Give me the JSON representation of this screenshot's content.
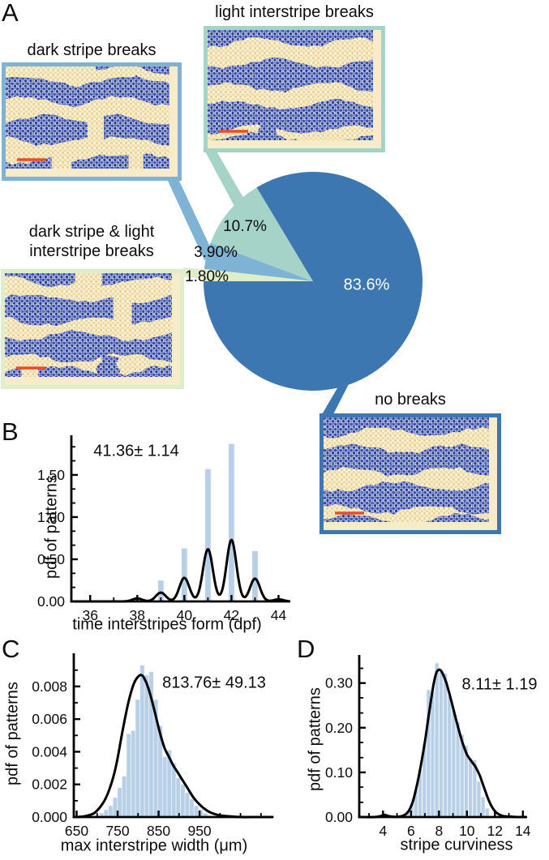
{
  "figure": {
    "panels": {
      "A": {
        "letter": "A",
        "boxes": [
          {
            "id": "dark-stripe-breaks",
            "label": "dark stripe breaks"
          },
          {
            "id": "light-interstripe-breaks",
            "label": "light interstripe breaks"
          },
          {
            "id": "dark-stripe-and-light-interstripe-breaks",
            "label_line1": "dark stripe & light",
            "label_line2": "interstripe breaks"
          },
          {
            "id": "no-breaks",
            "label": "no breaks"
          }
        ]
      },
      "B": {
        "letter": "B",
        "annotation": "41.36± 1.14",
        "xlabel": "time interstripes form (dpf)",
        "ylabel": "pdf of patterns"
      },
      "C": {
        "letter": "C",
        "annotation": "813.76± 49.13",
        "xlabel": "max interstripe width (μm)",
        "ylabel": "pdf of patterns"
      },
      "D": {
        "letter": "D",
        "annotation": "8.11± 1.19",
        "xlabel": "stripe curviness",
        "ylabel": "pdf of patterns"
      }
    },
    "colors": {
      "pie_blue": "#3d77b2",
      "pie_teal": "#a6d3c8",
      "pie_light_blue": "#7fb3d5",
      "pie_pale_green": "#dfeeca",
      "histogram_bar": "#b7cfe7",
      "curve": "#000000",
      "axis": "#000000",
      "scale_bar": "#e84e25",
      "text": "#0c0c0c"
    }
  },
  "chart_data": [
    {
      "type": "pie",
      "start_angle_deg": 270,
      "direction": "clockwise",
      "slices": [
        {
          "label": "dark stripe & light interstripe breaks",
          "value": 1.8,
          "pct_label": "1.80%",
          "color": "#dfeeca"
        },
        {
          "label": "dark stripe breaks",
          "value": 3.9,
          "pct_label": "3.90%",
          "color": "#7fb3d5"
        },
        {
          "label": "light interstripe breaks",
          "value": 10.7,
          "pct_label": "10.7%",
          "color": "#a6d3c8"
        },
        {
          "label": "no breaks",
          "value": 83.6,
          "pct_label": "83.6%",
          "color": "#3d77b2"
        }
      ]
    },
    {
      "type": "bar+line",
      "panel": "B",
      "annotation": "41.36± 1.14",
      "xlabel": "time interstripes form (dpf)",
      "ylabel": "pdf of patterns",
      "xlim": [
        35.2,
        44.5
      ],
      "ylim": [
        0,
        1.97
      ],
      "xticks": {
        "major": [
          36,
          38,
          40,
          42,
          44
        ],
        "major_labels": [
          "36",
          "38",
          "40",
          "42",
          "44"
        ],
        "minor": [
          37,
          39,
          41,
          43
        ]
      },
      "yticks": {
        "major": [
          0,
          0.5,
          1.0,
          1.5
        ],
        "major_labels": [
          "0.00",
          "0.50",
          "1.00",
          "1.50"
        ],
        "minor": [
          0.167,
          0.333,
          0.667,
          0.833,
          1.167,
          1.333,
          1.667,
          1.833
        ]
      },
      "bars": {
        "centers": [
          38,
          39,
          40,
          41,
          42,
          43,
          44
        ],
        "heights": [
          0.05,
          0.25,
          0.63,
          1.57,
          1.87,
          0.6,
          0.03
        ],
        "width": 0.25
      },
      "curve": {
        "type": "gaussian_mixture",
        "sigma": 0.21,
        "centers": [
          38,
          39,
          40,
          41,
          42,
          43,
          44
        ],
        "peak_heights": [
          0.035,
          0.105,
          0.28,
          0.62,
          0.73,
          0.27,
          0.025
        ]
      }
    },
    {
      "type": "bar+line",
      "panel": "C",
      "annotation": "813.76± 49.13",
      "xlabel": "max interstripe width (μm)",
      "ylabel": "pdf of patterns",
      "xlim": [
        643,
        1130
      ],
      "ylim": [
        0,
        0.01003
      ],
      "xticks": {
        "major": [
          650,
          750,
          850,
          950
        ],
        "major_labels": [
          "650",
          "750",
          "850",
          "950"
        ],
        "minor": [
          700,
          800,
          900,
          1000,
          1050,
          1100
        ]
      },
      "yticks": {
        "major": [
          0,
          0.002,
          0.004,
          0.006,
          0.008
        ],
        "major_labels": [
          "0.000",
          "0.002",
          "0.004",
          "0.006",
          "0.008"
        ],
        "minor": [
          0.001,
          0.003,
          0.005,
          0.007,
          0.009
        ]
      },
      "bars": {
        "centers": [
          700,
          711,
          722,
          733,
          744,
          755,
          766,
          777,
          788,
          799,
          810,
          821,
          832,
          843,
          854,
          865,
          876,
          887,
          898,
          909,
          920,
          931,
          942,
          953,
          964,
          975,
          1005
        ],
        "heights": [
          0.0001,
          0.00025,
          0.00045,
          0.0007,
          0.0012,
          0.0018,
          0.0025,
          0.0051,
          0.0053,
          0.0072,
          0.0093,
          0.0087,
          0.0089,
          0.0072,
          0.0056,
          0.0037,
          0.0041,
          0.0033,
          0.0024,
          0.002,
          0.0015,
          0.0011,
          0.0007,
          0.00045,
          0.00025,
          0.0001,
          0.00015
        ],
        "width": 11
      },
      "curve": {
        "type": "points",
        "x": [
          650,
          670,
          690,
          700,
          710,
          720,
          730,
          740,
          750,
          760,
          770,
          780,
          790,
          800,
          808,
          815,
          825,
          835,
          845,
          855,
          865,
          875,
          885,
          895,
          905,
          915,
          925,
          935,
          945,
          955,
          965,
          975,
          985,
          1000,
          1020,
          1050,
          1090,
          1125
        ],
        "y": [
          0,
          5e-05,
          0.0002,
          0.0004,
          0.0007,
          0.0011,
          0.0017,
          0.0025,
          0.0036,
          0.005,
          0.0063,
          0.0074,
          0.0082,
          0.0086,
          0.0087,
          0.0085,
          0.0079,
          0.007,
          0.006,
          0.005,
          0.0042,
          0.0037,
          0.0032,
          0.0028,
          0.0024,
          0.002,
          0.0016,
          0.0012,
          0.0009,
          0.00065,
          0.00045,
          0.0003,
          0.0002,
          0.0001,
          5e-05,
          0,
          0,
          0
        ]
      }
    },
    {
      "type": "bar+line",
      "panel": "D",
      "annotation": "8.11± 1.19",
      "xlabel": "stripe curviness",
      "ylabel": "pdf of patterns",
      "xlim": [
        2.3,
        14.3
      ],
      "ylim": [
        0,
        0.363
      ],
      "xticks": {
        "major": [
          4,
          6,
          8,
          10,
          12,
          14
        ],
        "major_labels": [
          "4",
          "6",
          "8",
          "10",
          "12",
          "14"
        ],
        "minor": [
          3,
          5,
          7,
          9,
          11,
          13
        ]
      },
      "yticks": {
        "major": [
          0,
          0.1,
          0.2,
          0.3
        ],
        "major_labels": [
          "0.00",
          "0.10",
          "0.20",
          "0.30"
        ],
        "minor": [
          0.033,
          0.067,
          0.133,
          0.167,
          0.233,
          0.267,
          0.333
        ]
      },
      "bars": {
        "centers": [
          4.1,
          5.45,
          5.75,
          6.05,
          6.35,
          6.65,
          6.95,
          7.25,
          7.55,
          7.85,
          8.15,
          8.45,
          8.75,
          9.05,
          9.35,
          9.65,
          9.95,
          10.25,
          10.55,
          10.85,
          11.15,
          11.45
        ],
        "heights": [
          0.005,
          0.004,
          0.01,
          0.028,
          0.06,
          0.105,
          0.165,
          0.285,
          0.28,
          0.345,
          0.325,
          0.322,
          0.27,
          0.24,
          0.212,
          0.185,
          0.16,
          0.132,
          0.128,
          0.08,
          0.045,
          0.02
        ],
        "width": 0.28
      },
      "curve": {
        "type": "points",
        "x": [
          3.4,
          3.8,
          4.1,
          4.4,
          4.8,
          5.2,
          5.5,
          5.8,
          6.1,
          6.4,
          6.7,
          7.0,
          7.3,
          7.6,
          7.8,
          8.0,
          8.2,
          8.5,
          8.8,
          9.1,
          9.4,
          9.7,
          10.0,
          10.3,
          10.6,
          10.9,
          11.2,
          11.5,
          11.8,
          12.1,
          12.5,
          13.0,
          13.6
        ],
        "y": [
          0,
          0.002,
          0.005,
          0.002,
          0.0005,
          0.001,
          0.004,
          0.012,
          0.032,
          0.068,
          0.115,
          0.17,
          0.235,
          0.295,
          0.322,
          0.33,
          0.325,
          0.303,
          0.27,
          0.233,
          0.197,
          0.165,
          0.14,
          0.126,
          0.113,
          0.094,
          0.068,
          0.042,
          0.022,
          0.01,
          0.003,
          0.001,
          0
        ]
      }
    }
  ]
}
